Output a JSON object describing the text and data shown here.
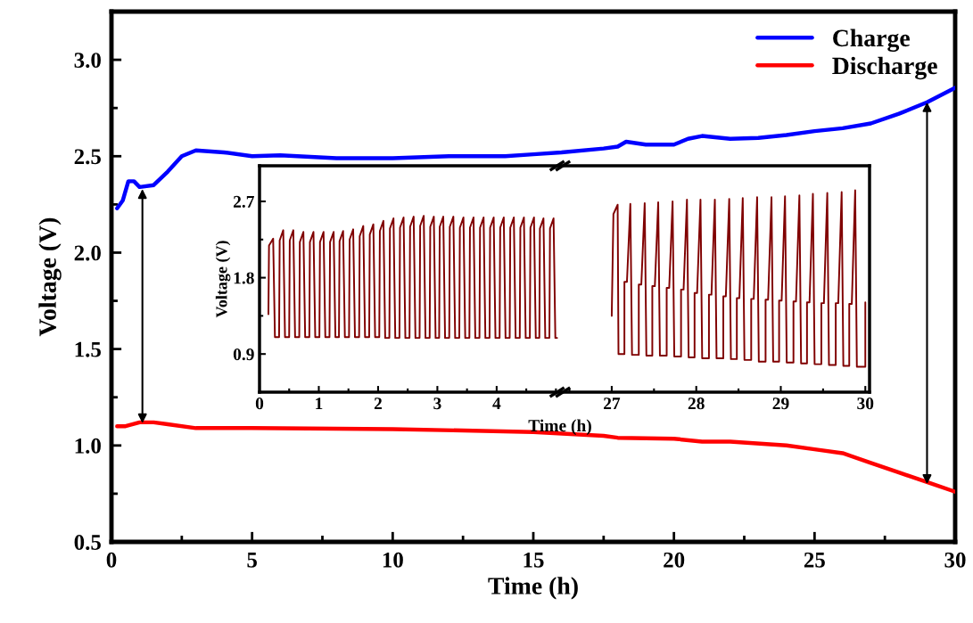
{
  "chart_data": [
    {
      "type": "line",
      "xlabel": "Time (h)",
      "ylabel": "Voltage (V)",
      "xlim": [
        0,
        30
      ],
      "ylim": [
        0.5,
        3.25
      ],
      "xticks": [
        0,
        5,
        10,
        15,
        20,
        25,
        30
      ],
      "yticks": [
        {
          "value": 0.5,
          "label": "0.5"
        },
        {
          "value": 1.0,
          "label": "1.0"
        },
        {
          "value": 1.5,
          "label": "1.5"
        },
        {
          "value": 2.0,
          "label": "2.0"
        },
        {
          "value": 2.5,
          "label": "2.5"
        },
        {
          "value": 3.0,
          "label": "3.0"
        }
      ],
      "legend": "top right",
      "grid": false,
      "series": [
        {
          "color": "#000000",
          "x": [
            1.1,
            1.1
          ],
          "values": [
            1.115,
            2.33
          ]
        },
        {
          "color": "#000000",
          "x": [
            29.0,
            29.0
          ],
          "values": [
            0.8,
            2.78
          ]
        },
        {
          "name": "Charge",
          "color": "#0000ff",
          "x": [
            0.2,
            0.4,
            0.6,
            0.8,
            1.0,
            1.5,
            2.0,
            2.5,
            3.0,
            4,
            5,
            6,
            8,
            10,
            12,
            14,
            15,
            16,
            17.5,
            18,
            18.3,
            19,
            20,
            20.5,
            21,
            22,
            23,
            24,
            25,
            26,
            27,
            28,
            29,
            30
          ],
          "values": [
            2.23,
            2.27,
            2.37,
            2.37,
            2.34,
            2.35,
            2.42,
            2.5,
            2.53,
            2.52,
            2.5,
            2.505,
            2.49,
            2.49,
            2.5,
            2.5,
            2.51,
            2.52,
            2.54,
            2.55,
            2.575,
            2.56,
            2.56,
            2.59,
            2.605,
            2.59,
            2.595,
            2.61,
            2.63,
            2.645,
            2.67,
            2.72,
            2.78,
            2.855
          ]
        },
        {
          "name": "Discharge",
          "color": "#ff0000",
          "x": [
            0.2,
            0.5,
            1.0,
            1.5,
            2.0,
            3,
            5,
            10,
            15,
            17.5,
            18,
            20,
            21,
            22,
            24,
            25,
            26,
            27,
            28,
            29,
            30
          ],
          "values": [
            1.1,
            1.1,
            1.12,
            1.12,
            1.11,
            1.09,
            1.09,
            1.085,
            1.07,
            1.05,
            1.04,
            1.035,
            1.02,
            1.02,
            1.0,
            0.98,
            0.96,
            0.91,
            0.86,
            0.81,
            0.76
          ]
        }
      ]
    },
    {
      "type": "line",
      "xlabel": "Time (h)",
      "ylabel": "Voltage (V)",
      "xlim": [
        0,
        5.07
      ],
      "ylim": [
        0.45,
        3.12
      ],
      "xticks": [
        0,
        1,
        2,
        3,
        4
      ],
      "yticks": [
        {
          "value": 0.9,
          "label": "0.9"
        },
        {
          "value": 1.8,
          "label": "1.8"
        },
        {
          "value": 2.7,
          "label": "2.7"
        }
      ],
      "grid": false,
      "x": [
        0.15,
        0.16,
        0.23,
        0.26,
        0.33,
        0.34,
        0.4,
        0.43,
        0.5,
        0.51,
        0.57,
        0.6,
        0.67,
        0.68,
        0.74,
        0.77,
        0.84,
        0.85,
        0.91,
        0.94,
        1.01,
        1.02,
        1.08,
        1.11,
        1.18,
        1.19,
        1.25,
        1.28,
        1.34,
        1.35,
        1.41,
        1.44,
        1.51,
        1.52,
        1.58,
        1.61,
        1.68,
        1.69,
        1.75,
        1.78,
        1.85,
        1.86,
        1.92,
        1.95,
        2.02,
        2.03,
        2.09,
        2.12,
        2.19,
        2.2,
        2.26,
        2.29,
        2.36,
        2.37,
        2.43,
        2.46,
        2.53,
        2.54,
        2.6,
        2.63,
        2.7,
        2.71,
        2.77,
        2.8,
        2.87,
        2.88,
        2.94,
        2.97,
        3.03,
        3.04,
        3.1,
        3.13,
        3.2,
        3.21,
        3.27,
        3.3,
        3.37,
        3.38,
        3.44,
        3.47,
        3.54,
        3.55,
        3.61,
        3.64,
        3.71,
        3.72,
        3.78,
        3.81,
        3.88,
        3.89,
        3.95,
        3.98,
        4.05,
        4.06,
        4.12,
        4.15,
        4.22,
        4.23,
        4.29,
        4.32,
        4.39,
        4.4,
        4.46,
        4.49,
        4.56,
        4.57,
        4.63,
        4.66,
        4.72,
        4.73,
        4.79,
        4.82,
        4.89,
        4.9,
        4.96,
        4.99,
        5.02
      ],
      "series": [
        {
          "color": "#800000",
          "values": [
            1.37,
            2.18,
            2.26,
            1.1,
            1.1,
            2.24,
            2.36,
            1.1,
            1.1,
            2.24,
            2.36,
            1.1,
            1.1,
            2.22,
            2.34,
            1.1,
            1.1,
            2.22,
            2.34,
            1.1,
            1.1,
            2.22,
            2.34,
            1.1,
            1.1,
            2.22,
            2.34,
            1.1,
            1.1,
            2.23,
            2.35,
            1.1,
            1.1,
            2.25,
            2.37,
            1.1,
            1.1,
            2.29,
            2.41,
            1.1,
            1.1,
            2.31,
            2.43,
            1.1,
            1.1,
            2.35,
            2.47,
            1.09,
            1.09,
            2.38,
            2.5,
            1.09,
            1.09,
            2.39,
            2.51,
            1.09,
            1.09,
            2.4,
            2.52,
            1.09,
            1.09,
            2.41,
            2.53,
            1.09,
            1.09,
            2.4,
            2.52,
            1.09,
            1.09,
            2.4,
            2.52,
            1.09,
            1.09,
            2.4,
            2.52,
            1.09,
            1.09,
            2.39,
            2.51,
            1.09,
            1.09,
            2.39,
            2.51,
            1.09,
            1.09,
            2.39,
            2.51,
            1.09,
            1.09,
            2.39,
            2.51,
            1.09,
            1.09,
            2.39,
            2.51,
            1.09,
            1.09,
            2.39,
            2.51,
            1.09,
            1.09,
            2.39,
            2.51,
            1.09,
            1.09,
            2.39,
            2.51,
            1.09,
            1.09,
            2.38,
            2.5,
            1.09,
            1.09,
            2.38,
            2.5,
            1.09,
            1.09
          ]
        }
      ]
    },
    {
      "type": "line",
      "xlim": [
        26.41,
        30.05
      ],
      "ylim": [
        0.45,
        3.12
      ],
      "xticks": [
        27,
        28,
        29,
        30
      ],
      "tick_labels": "x",
      "grid": false,
      "x": [
        27.0,
        27.02,
        27.07,
        27.08,
        27.15,
        27.15,
        27.18,
        27.22,
        27.24,
        27.32,
        27.32,
        27.35,
        27.39,
        27.41,
        27.48,
        27.48,
        27.51,
        27.55,
        27.57,
        27.65,
        27.65,
        27.68,
        27.72,
        27.74,
        27.82,
        27.82,
        27.85,
        27.89,
        27.91,
        27.98,
        27.98,
        28.01,
        28.05,
        28.07,
        28.15,
        28.15,
        28.18,
        28.22,
        28.24,
        28.32,
        28.32,
        28.35,
        28.39,
        28.41,
        28.48,
        28.48,
        28.51,
        28.55,
        28.57,
        28.65,
        28.65,
        28.68,
        28.72,
        28.74,
        28.82,
        28.82,
        28.85,
        28.89,
        28.91,
        28.98,
        28.98,
        29.01,
        29.05,
        29.07,
        29.15,
        29.15,
        29.18,
        29.22,
        29.24,
        29.31,
        29.31,
        29.34,
        29.38,
        29.4,
        29.48,
        29.48,
        29.51,
        29.55,
        29.57,
        29.65,
        29.65,
        29.68,
        29.72,
        29.74,
        29.81,
        29.81,
        29.84,
        29.88,
        29.9,
        30.0,
        30.0
      ],
      "series": [
        {
          "color": "#800000",
          "values": [
            1.35,
            2.55,
            2.66,
            0.9,
            0.9,
            1.75,
            1.75,
            2.67,
            0.89,
            0.89,
            1.72,
            1.72,
            2.68,
            0.88,
            0.88,
            1.7,
            1.7,
            2.69,
            0.88,
            0.88,
            1.68,
            1.68,
            2.7,
            0.87,
            0.87,
            1.66,
            1.66,
            2.72,
            0.86,
            0.86,
            1.62,
            1.62,
            2.72,
            0.85,
            0.85,
            1.6,
            1.6,
            2.72,
            0.85,
            0.85,
            1.58,
            1.58,
            2.73,
            0.84,
            0.84,
            1.56,
            1.56,
            2.74,
            0.83,
            0.83,
            1.55,
            1.55,
            2.75,
            0.81,
            0.81,
            1.54,
            1.54,
            2.75,
            0.81,
            0.81,
            1.53,
            1.53,
            2.76,
            0.8,
            0.8,
            1.52,
            1.52,
            2.77,
            0.79,
            0.79,
            1.51,
            1.51,
            2.79,
            0.78,
            0.78,
            1.5,
            1.5,
            2.8,
            0.77,
            0.77,
            1.5,
            1.5,
            2.81,
            0.76,
            0.76,
            1.49,
            1.49,
            2.83,
            0.75,
            0.75,
            1.51
          ]
        }
      ]
    }
  ]
}
